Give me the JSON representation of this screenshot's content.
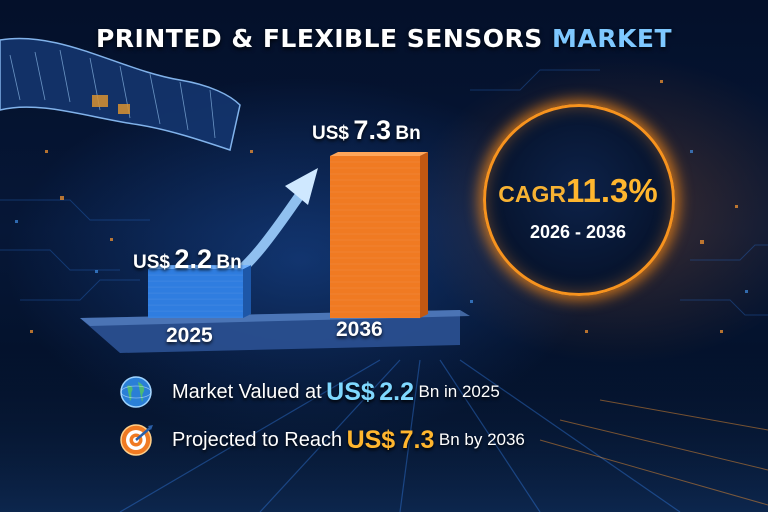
{
  "title": {
    "part1": "PRINTED & FLEXIBLE SENSORS",
    "part2": "MARKET"
  },
  "chart_data": {
    "type": "bar",
    "categories": [
      "2025",
      "2036"
    ],
    "values": [
      2.2,
      7.3
    ],
    "value_labels": [
      {
        "currency": "US$",
        "value": "2.2",
        "unit": "Bn"
      },
      {
        "currency": "US$",
        "value": "7.3",
        "unit": "Bn"
      }
    ],
    "bar_colors": [
      "#2f7de0",
      "#f07a22"
    ],
    "cagr": {
      "label": "CAGR",
      "value": "11.3%",
      "period": "2026 - 2036"
    }
  },
  "info": [
    {
      "icon": "globe-icon",
      "pre": "Market Valued at",
      "currency": "US$",
      "value": "2.2",
      "post": "Bn in 2025"
    },
    {
      "icon": "target-icon",
      "pre": "Projected to Reach",
      "currency": "US$",
      "value": "7.3",
      "post": "Bn by 2036"
    }
  ],
  "colors": {
    "accent_blue": "#7fd8ff",
    "accent_orange": "#ffb62e",
    "background": "#04122c"
  }
}
